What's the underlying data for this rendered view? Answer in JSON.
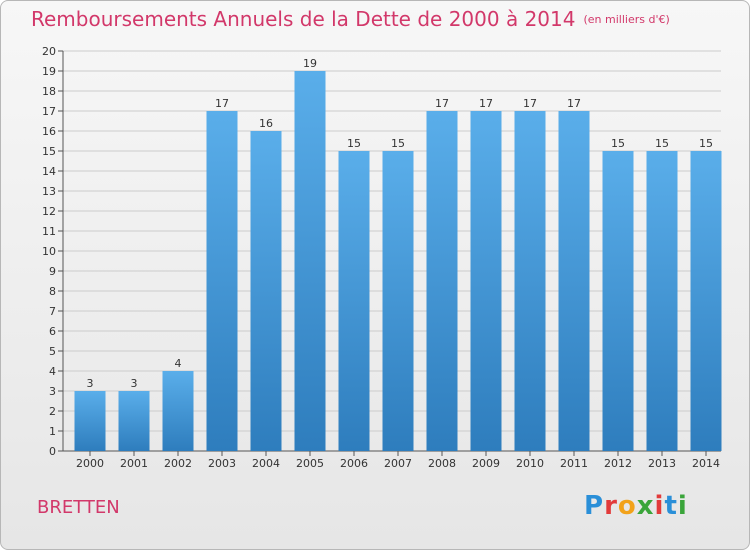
{
  "chart_data": {
    "type": "bar",
    "title": "Remboursements Annuels de la Dette de 2000 à 2014",
    "subtitle": "(en milliers d'€)",
    "categories": [
      "2000",
      "2001",
      "2002",
      "2003",
      "2004",
      "2005",
      "2006",
      "2007",
      "2008",
      "2009",
      "2010",
      "2011",
      "2012",
      "2013",
      "2014"
    ],
    "values": [
      3,
      3,
      4,
      17,
      16,
      19,
      15,
      15,
      17,
      17,
      17,
      17,
      15,
      15,
      15
    ],
    "ylim": [
      0,
      20
    ],
    "yticks": [
      0,
      1,
      2,
      3,
      4,
      5,
      6,
      7,
      8,
      9,
      10,
      11,
      12,
      13,
      14,
      15,
      16,
      17,
      18,
      19,
      20
    ],
    "grid": true,
    "xlabel": "",
    "ylabel": "",
    "colors": {
      "bar_light": "#5aaeea",
      "bar_dark": "#2e7dbd",
      "title": "#d2386a",
      "grid": "#cccccc"
    }
  },
  "commune": "BRETTEN",
  "logo": {
    "letters": [
      "P",
      "r",
      "o",
      "x",
      "i",
      "t",
      "i"
    ],
    "colors": [
      "#2a8fd8",
      "#e23b3b",
      "#f2a21a",
      "#3aa53a",
      "#e23b3b",
      "#2a8fd8",
      "#3aa53a"
    ]
  }
}
